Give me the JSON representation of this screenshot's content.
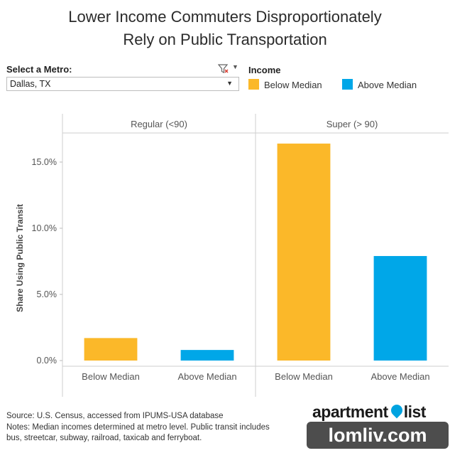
{
  "title_line1": "Lower Income Commuters Disproportionately",
  "title_line2": "Rely on Public Transportation",
  "filter": {
    "label": "Select a Metro:",
    "selected": "Dallas, TX"
  },
  "legend": {
    "title": "Income",
    "items": [
      {
        "label": "Below Median",
        "color": "#fbb829"
      },
      {
        "label": "Above Median",
        "color": "#00a7e8"
      }
    ]
  },
  "source_line1": "Source: U.S. Census, accessed from IPUMS-USA database",
  "source_line2": "Notes: Median incomes determined at metro level. Public transit includes",
  "source_line3": "bus, streetcar, subway, railroad, taxicab and ferryboat.",
  "brand": {
    "word1": "apartment",
    "word2": "list"
  },
  "watermark": "lomliv.com",
  "chart_data": {
    "type": "bar",
    "ylabel": "Share Using Public Transit",
    "ylim": [
      0,
      17.2
    ],
    "yticks": [
      0,
      5,
      10,
      15
    ],
    "ytick_labels": [
      "0.0%",
      "5.0%",
      "10.0%",
      "15.0%"
    ],
    "panels": [
      {
        "name": "Regular (<90)",
        "categories": [
          "Below Median",
          "Above Median"
        ],
        "values": [
          1.7,
          0.8
        ],
        "colors": [
          "#fbb829",
          "#00a7e8"
        ]
      },
      {
        "name": "Super (> 90)",
        "categories": [
          "Below Median",
          "Above Median"
        ],
        "values": [
          16.4,
          7.9
        ],
        "colors": [
          "#fbb829",
          "#00a7e8"
        ]
      }
    ]
  }
}
